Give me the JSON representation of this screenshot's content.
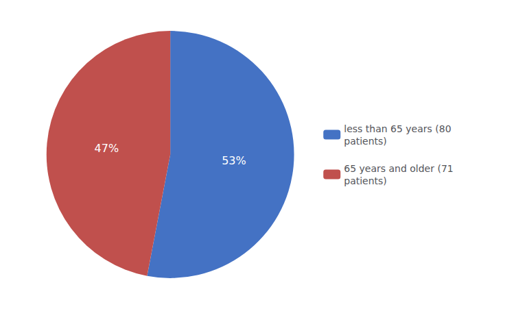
{
  "chart_data": {
    "type": "pie",
    "categories": [
      "less than 65 years (80\npatients)",
      "65 years and older (71\npatients)"
    ],
    "values": [
      53,
      47
    ],
    "value_labels": [
      "53%",
      "47%"
    ],
    "colors": [
      "#4472C4",
      "#C0504D"
    ],
    "data_labels": true,
    "legend": "right"
  }
}
